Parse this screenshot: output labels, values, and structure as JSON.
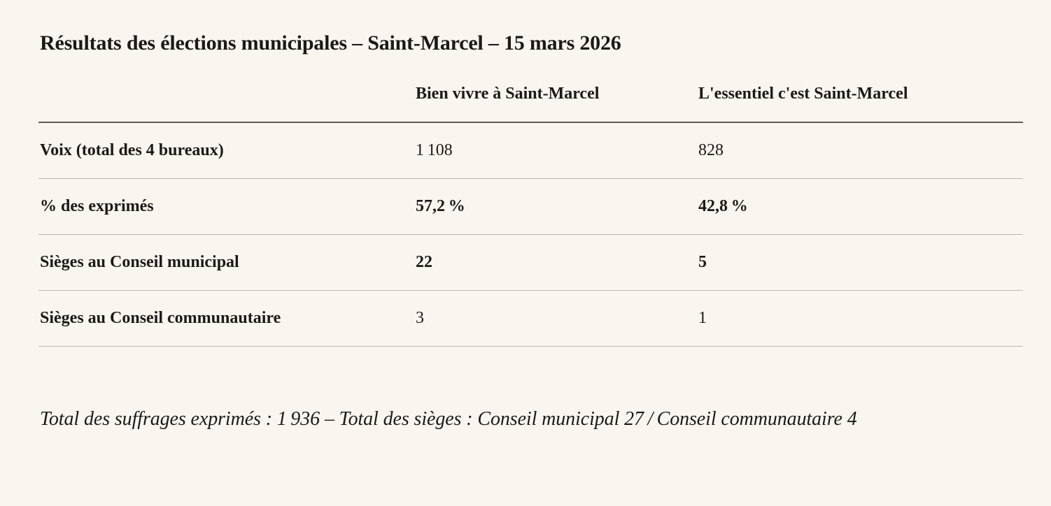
{
  "page": {
    "title": "Résultats des élections municipales – Saint-Marcel – 15 mars 2026",
    "background_color": "#f8f6ef",
    "text_color": "#1b1a17",
    "header_rule_color": "#5d5c56",
    "row_rule_color": "#bcbab1"
  },
  "table": {
    "columns": [
      "",
      "Bien vivre à Saint-Marcel",
      "L'essentiel c'est Saint-Marcel"
    ],
    "rows": [
      {
        "label": "Voix (total des 4 bureaux)",
        "values": [
          "1 108",
          "828"
        ],
        "bold_values": false
      },
      {
        "label": "% des exprimés",
        "values": [
          "57,2 %",
          "42,8 %"
        ],
        "bold_values": true
      },
      {
        "label": "Sièges au Conseil municipal",
        "values": [
          "22",
          "5"
        ],
        "bold_values": true
      },
      {
        "label": "Sièges au Conseil communautaire",
        "values": [
          "3",
          "1"
        ],
        "bold_values": false
      }
    ]
  },
  "footer": {
    "note": "Total des suffrages exprimés : 1 936 – Total des sièges : Conseil municipal 27 / Conseil communautaire 4"
  }
}
